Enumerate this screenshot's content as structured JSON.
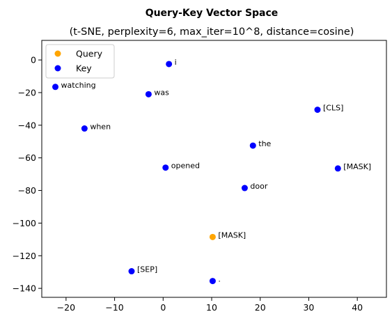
{
  "chart_data": {
    "type": "scatter",
    "title": "Query-Key Vector Space",
    "subtitle": "(t-SNE, perplexity=6, max_iter=10^8, distance=cosine)",
    "xlabel": "",
    "ylabel": "",
    "xlim": [
      -25,
      46
    ],
    "ylim": [
      -145.5,
      12
    ],
    "xticks": [
      -20,
      -10,
      0,
      10,
      20,
      30,
      40
    ],
    "yticks": [
      0,
      -20,
      -40,
      -60,
      -80,
      -100,
      -120,
      -140
    ],
    "grid": false,
    "legend": "top-left",
    "series": [
      {
        "name": "Query",
        "color": "#ffa500",
        "points": [
          {
            "x": 10.2,
            "y": -108.5,
            "label": "[MASK]"
          }
        ]
      },
      {
        "name": "Key",
        "color": "#0000ff",
        "points": [
          {
            "x": 1.2,
            "y": -2.5,
            "label": "i"
          },
          {
            "x": -22.2,
            "y": -16.5,
            "label": "watching"
          },
          {
            "x": -3.0,
            "y": -21.0,
            "label": "was"
          },
          {
            "x": 31.8,
            "y": -30.5,
            "label": "[CLS]"
          },
          {
            "x": -16.2,
            "y": -42.0,
            "label": "when"
          },
          {
            "x": 18.5,
            "y": -52.5,
            "label": "the"
          },
          {
            "x": 0.5,
            "y": -66.0,
            "label": "opened"
          },
          {
            "x": 36.0,
            "y": -66.5,
            "label": "[MASK]"
          },
          {
            "x": 16.8,
            "y": -78.5,
            "label": "door"
          },
          {
            "x": -6.5,
            "y": -129.5,
            "label": "[SEP]"
          },
          {
            "x": 10.2,
            "y": -135.5,
            "label": "."
          }
        ]
      }
    ]
  }
}
